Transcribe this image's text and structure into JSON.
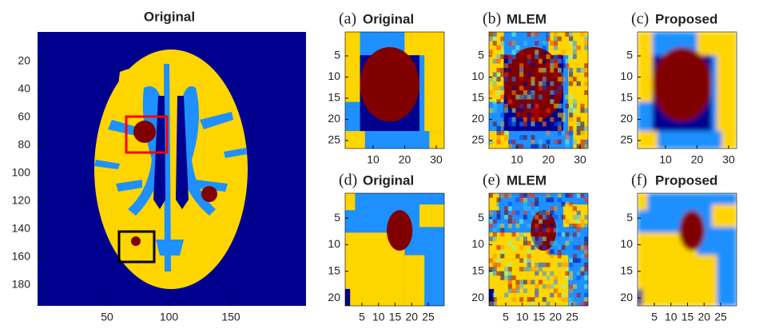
{
  "main": {
    "title": "Original",
    "yticks": [
      20,
      40,
      60,
      80,
      100,
      120,
      140,
      160,
      180
    ],
    "xticks": [
      50,
      100,
      150
    ]
  },
  "panels": [
    {
      "label": "(a)",
      "title": "Original",
      "yticks": [
        5,
        10,
        15,
        20,
        25
      ],
      "xticks": [
        10,
        20,
        30
      ]
    },
    {
      "label": "(b)",
      "title": "MLEM",
      "yticks": [
        5,
        10,
        15,
        20,
        25
      ],
      "xticks": [
        10,
        20,
        30
      ]
    },
    {
      "label": "(c)",
      "title": "Proposed",
      "yticks": [
        5,
        10,
        15,
        20,
        25
      ],
      "xticks": [
        10,
        20,
        30
      ]
    },
    {
      "label": "(d)",
      "title": "Original",
      "yticks": [
        5,
        10,
        15,
        20
      ],
      "xticks": [
        5,
        10,
        15,
        20,
        25
      ]
    },
    {
      "label": "(e)",
      "title": "MLEM",
      "yticks": [
        5,
        10,
        15,
        20
      ],
      "xticks": [
        5,
        10,
        15,
        20,
        25
      ]
    },
    {
      "label": "(f)",
      "title": "Proposed",
      "yticks": [
        5,
        10,
        15,
        20
      ],
      "xticks": [
        5,
        10,
        15,
        20,
        25
      ]
    }
  ]
}
